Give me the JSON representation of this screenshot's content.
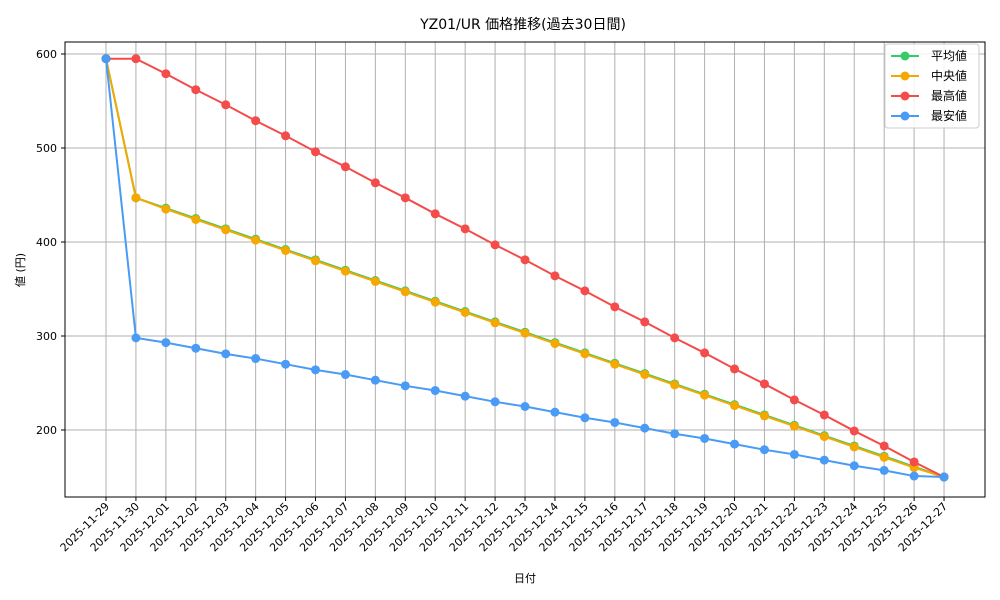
{
  "chart_data": {
    "type": "line",
    "title": "YZ01/UR 価格推移(過去30日間)",
    "xlabel": "日付",
    "ylabel": "値 (円)",
    "ylim": [
      127,
      618
    ],
    "yticks": [
      200,
      300,
      400,
      500,
      600
    ],
    "grid": true,
    "legend_position": "upper right",
    "categories": [
      "2025-11-29",
      "2025-11-30",
      "2025-12-01",
      "2025-12-02",
      "2025-12-03",
      "2025-12-04",
      "2025-12-05",
      "2025-12-06",
      "2025-12-07",
      "2025-12-08",
      "2025-12-09",
      "2025-12-10",
      "2025-12-11",
      "2025-12-12",
      "2025-12-13",
      "2025-12-14",
      "2025-12-15",
      "2025-12-16",
      "2025-12-17",
      "2025-12-18",
      "2025-12-19",
      "2025-12-20",
      "2025-12-21",
      "2025-12-22",
      "2025-12-23",
      "2025-12-24",
      "2025-12-25",
      "2025-12-26",
      "2025-12-27"
    ],
    "series": [
      {
        "name": "平均値",
        "color": "#33cc66",
        "values": [
          595,
          447,
          436,
          425,
          414,
          403,
          392,
          381,
          370,
          359,
          348,
          337,
          326,
          315,
          304,
          293,
          282,
          271,
          260,
          249,
          238,
          227,
          216,
          205,
          194,
          183,
          172,
          161,
          150
        ]
      },
      {
        "name": "中央値",
        "color": "#f5a800",
        "values": [
          595,
          447,
          435,
          424,
          413,
          402,
          391,
          380,
          369,
          358,
          347,
          336,
          325,
          314,
          303,
          292,
          281,
          270,
          259,
          248,
          237,
          226,
          215,
          204,
          193,
          182,
          171,
          160,
          150
        ]
      },
      {
        "name": "最高値",
        "color": "#f44b4b",
        "values": [
          595,
          595,
          579,
          562,
          546,
          529,
          513,
          496,
          480,
          463,
          447,
          430,
          414,
          397,
          381,
          364,
          348,
          331,
          315,
          298,
          282,
          265,
          249,
          232,
          216,
          199,
          183,
          166,
          150
        ]
      },
      {
        "name": "最安値",
        "color": "#4a9bf5",
        "values": [
          595,
          298,
          293,
          287,
          281,
          276,
          270,
          264,
          259,
          253,
          247,
          242,
          236,
          230,
          225,
          219,
          213,
          208,
          202,
          196,
          191,
          185,
          179,
          174,
          168,
          162,
          157,
          151,
          150
        ]
      }
    ]
  }
}
